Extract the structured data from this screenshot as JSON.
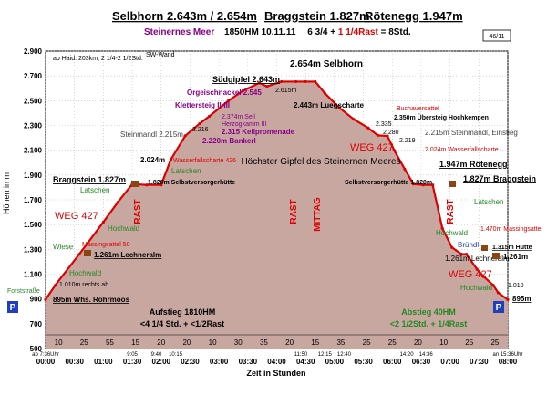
{
  "header": {
    "title_parts": [
      "Selbhorn 2.643m / 2.654m",
      "Braggstein 1.827m",
      "Rötenegg 1.947m"
    ],
    "subtitle_purple": "Steinernes Meer",
    "subtitle_date": "1850HM   10.11.11",
    "subtitle_time": "6 3/4 + ",
    "subtitle_rast": "1 1/4Rast",
    "subtitle_total": " = 8Std.",
    "page_counter": "46/11"
  },
  "colors": {
    "line": "#dd0000",
    "fill": "#c9a7a1",
    "green": "#228822",
    "purple": "#880088",
    "red": "#dd0000",
    "hut": "#8b4513",
    "p_badge": "#1f3fbf"
  },
  "chart_data": {
    "type": "area",
    "title": "",
    "xlabel": "Zeit in Stunden",
    "ylabel": "Höhen in m",
    "ylim": [
      500,
      2900
    ],
    "xlim": [
      0,
      480
    ],
    "x_unit": "minutes",
    "x_ticks": [
      "00:00",
      "00:30",
      "01:00",
      "01:30",
      "02:00",
      "02:30",
      "03:00",
      "03:30",
      "04:00",
      "04:30",
      "05:00",
      "05:30",
      "06:00",
      "06:30",
      "07:00",
      "07:30",
      "08:00"
    ],
    "y_ticks": [
      "500",
      "700",
      "900",
      "1.100",
      "1.300",
      "1.500",
      "1.700",
      "1.900",
      "2.100",
      "2.300",
      "2.500",
      "2.700",
      "2.900"
    ],
    "series": [
      {
        "x": [
          0,
          10,
          35,
          60,
          75,
          90,
          105,
          120,
          130,
          145,
          160,
          170,
          190,
          205,
          222,
          230,
          245,
          260,
          270,
          280,
          290,
          305,
          320,
          335,
          345,
          355,
          362,
          373,
          382,
          392,
          402,
          412,
          422,
          432,
          437,
          448,
          455,
          465,
          470,
          480
        ],
        "y": [
          895,
          1010,
          1261,
          1520,
          1680,
          1827,
          1820,
          1820,
          2024,
          2216,
          2315,
          2374,
          2500,
          2580,
          2643,
          2615,
          2654,
          2654,
          2654,
          2654,
          2560,
          2443,
          2350,
          2280,
          2220,
          2215,
          2100,
          1947,
          1827,
          1820,
          1820,
          1470,
          1315,
          1261,
          1261,
          1140,
          1080,
          1010,
          950,
          895
        ]
      }
    ],
    "duration_labels": [
      "10",
      "25",
      "55",
      "15",
      "20",
      "20",
      "10",
      "30",
      "35",
      "20",
      "15",
      "35",
      "25",
      "25",
      "20",
      "10",
      "25",
      "25"
    ],
    "time_stamps": [
      "ab 7:36Uhr",
      "9:05",
      "9:40",
      "10:15",
      "11:50",
      "12:15",
      "12:40",
      "14:20",
      "14:36",
      "an 15:36Uhr"
    ],
    "annotations": [
      "ab Haid: 203km; 2 1/4-2 1/2Std.",
      "SW-Wand",
      "2.654m Selbhorn",
      "Südgipfel 2.643m",
      "Orgeischnackel 2.545",
      "Kletterst­eig II-III",
      "2.374m Seil",
      "Herzogkamm III",
      "2.315 Keilpromenade",
      "2.220m Bankerl",
      "2.216",
      "2.024m",
      "Wasserfallscharte 426",
      "Steinmandl 2.215m",
      "2.615m",
      "2.443m Luegscharte",
      "Buchauersattel",
      "2.350m Übersteig Hochkempen",
      "2.335",
      "2.280",
      "2.219",
      "2.215m Steinmandl, Einstieg",
      "2.024m Wasserfallscharte",
      "Höchster Gipfel des Steinernen Meeres",
      "WEG 427",
      "1.947m Rötenegg",
      "1.827m Braggstein",
      "Braggstein 1.827m",
      "Latschen",
      "1.820m Selbstversorgerhütte",
      "Selbstversorgerhütte 1.820m",
      "Hochwald",
      "Wiese",
      "Massingsattel 50",
      "1.261m Lechneralm",
      "1.010m rechts ab",
      "Forststraße",
      "895m Whs. Rohrmoos",
      "895m",
      "Aufstieg 1810HM",
      "<4 1/4 Std. + <1/2Rast",
      "Abstieg 40HM",
      "<2 1/2Std. + 1/4Rast",
      "1.470m Massingsattel",
      "Bründl",
      "1.315m Hütte",
      "1.261m",
      "1.010",
      "RAST",
      "MITTAG"
    ]
  }
}
